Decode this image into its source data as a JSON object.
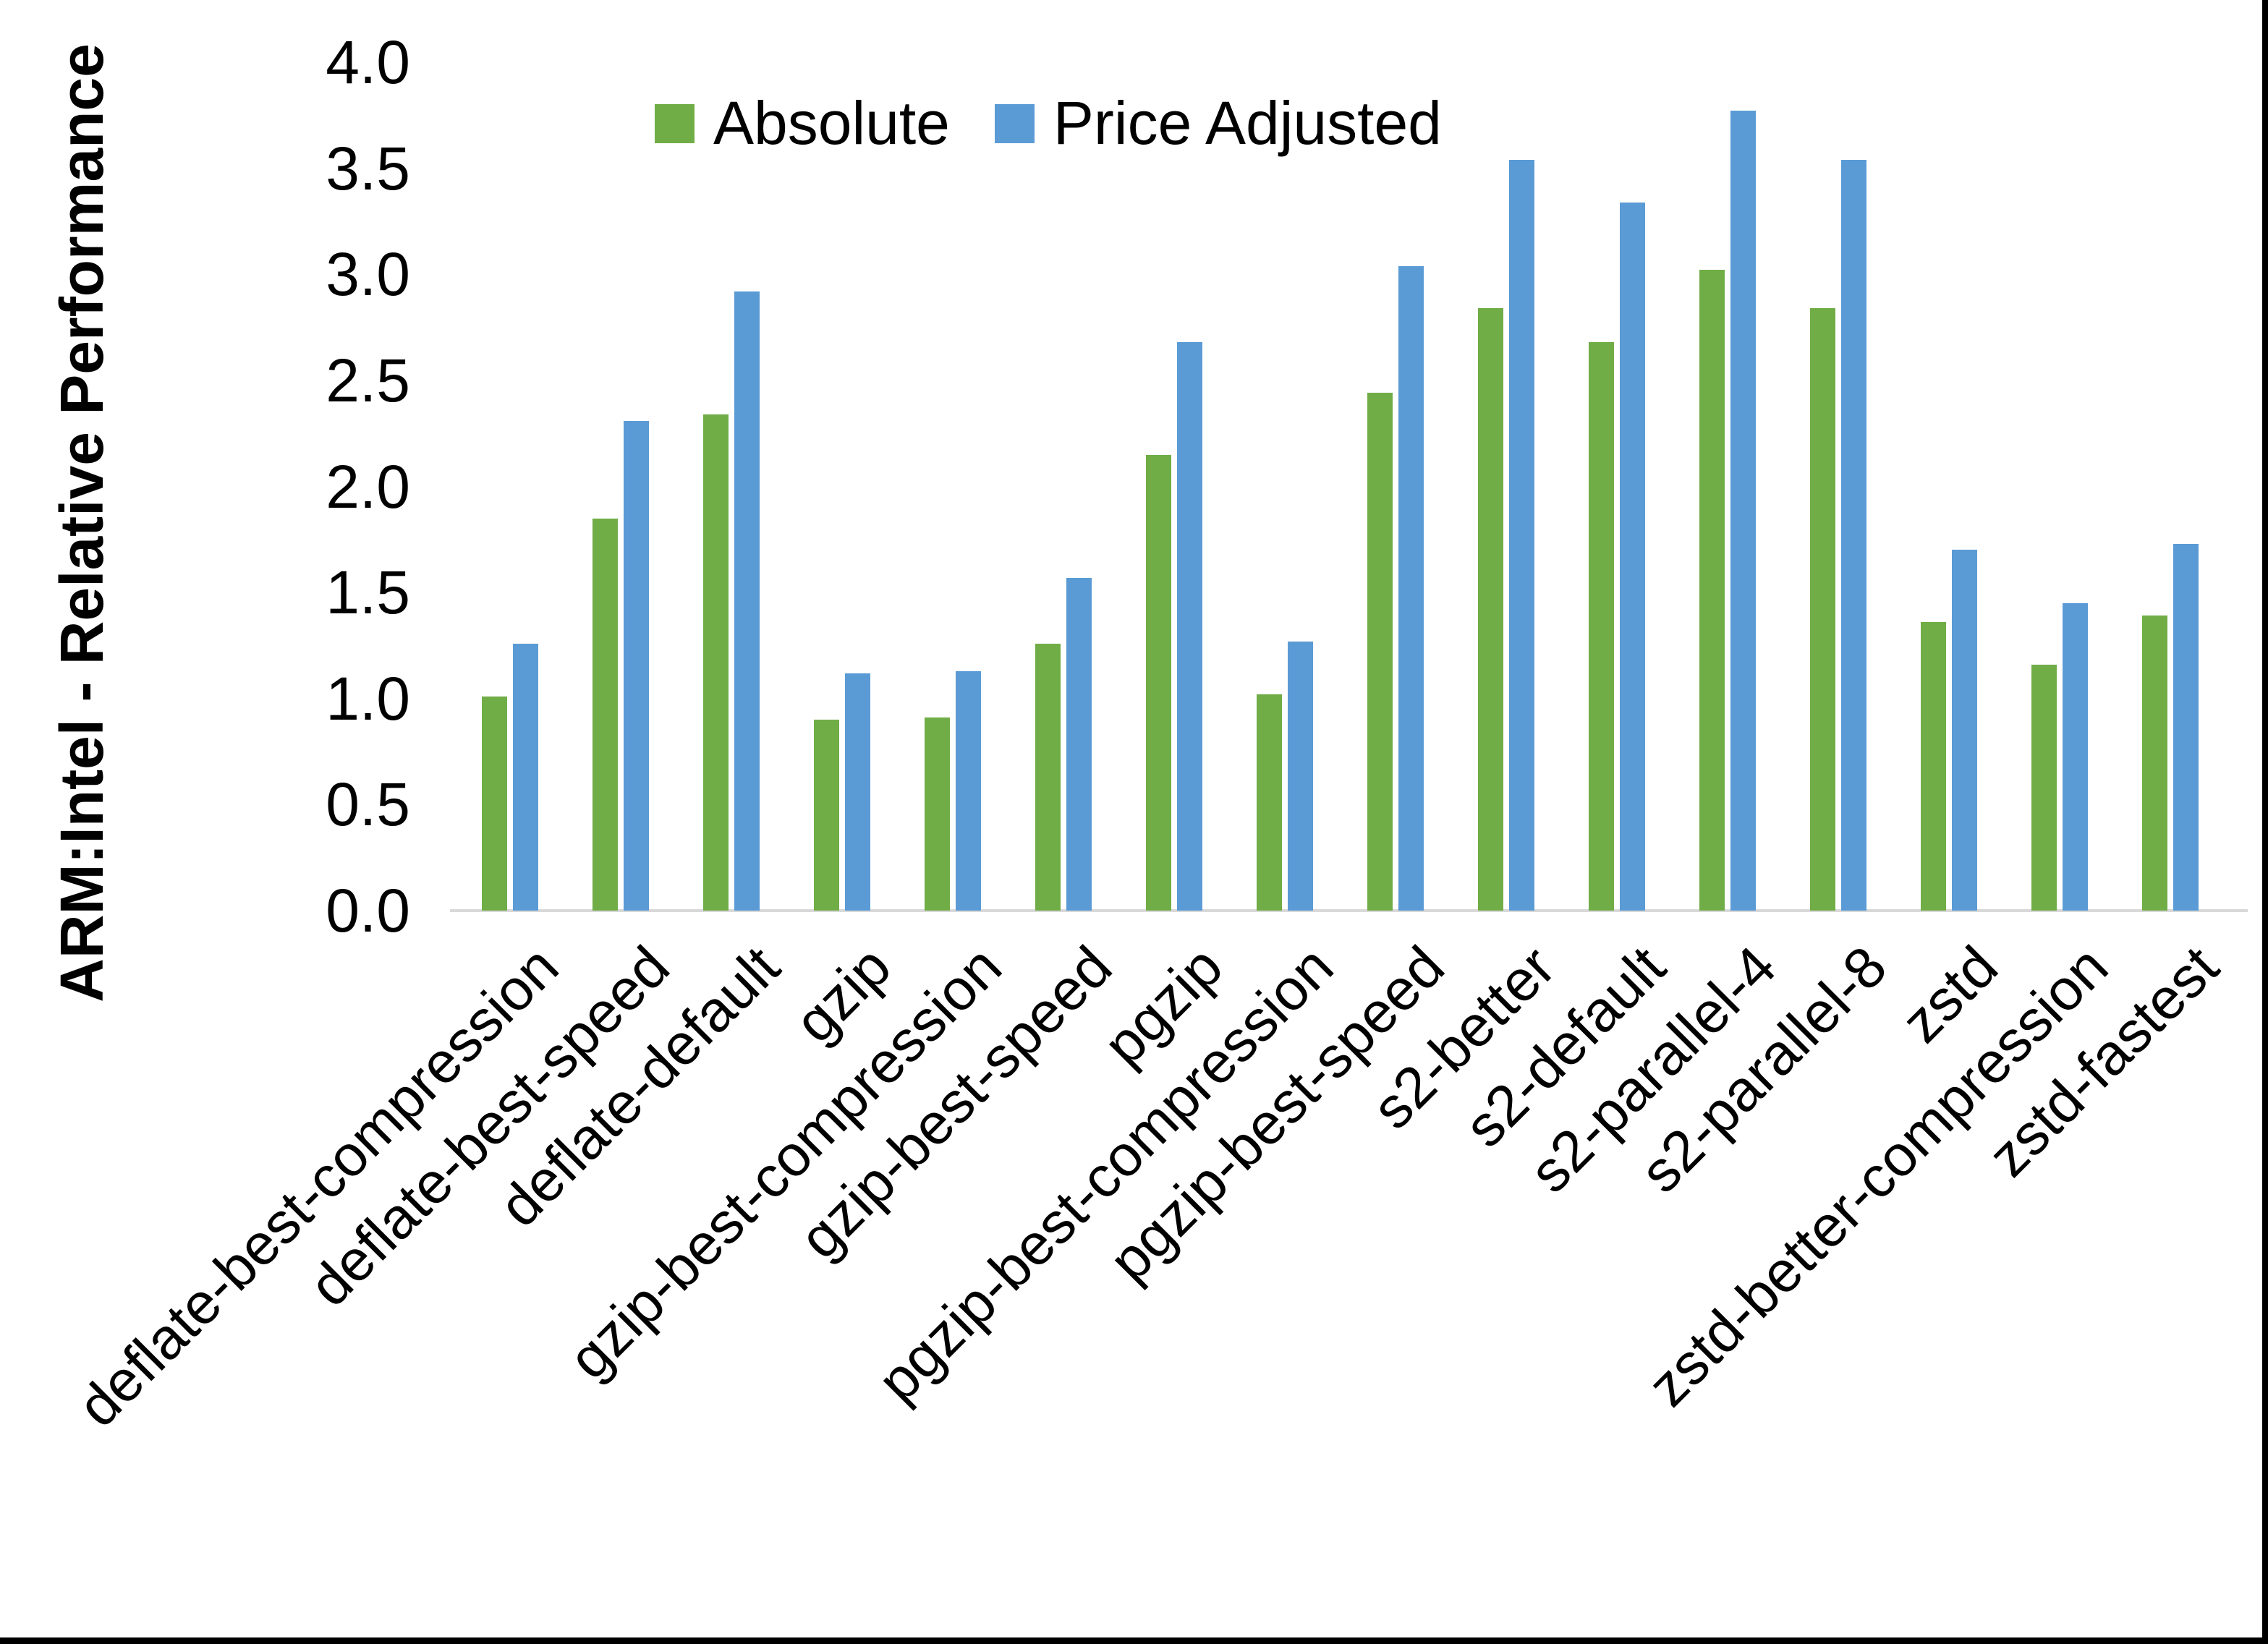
{
  "chart_data": {
    "type": "bar",
    "ylabel": "ARM:Intel - Relative Performance",
    "xlabel": "",
    "title": "",
    "ylim": [
      0.0,
      4.0
    ],
    "ytick_step": 0.5,
    "yticks": [
      "0.0",
      "0.5",
      "1.0",
      "1.5",
      "2.0",
      "2.5",
      "3.0",
      "3.5",
      "4.0"
    ],
    "grid": "off",
    "legend_position": "top",
    "categories": [
      "deflate-best-compression",
      "deflate-best-speed",
      "deflate-default",
      "gzip",
      "gzip-best-compression",
      "gzip-best-speed",
      "pgzip",
      "pgzip-best-compression",
      "pgzip-best-speed",
      "s2-better",
      "s2-default",
      "s2-parallel-4",
      "s2-parallel-8",
      "zstd",
      "zstd-better-compression",
      "zstd-fastest"
    ],
    "series": [
      {
        "name": "Absolute",
        "color": "#70ad47",
        "values": [
          1.01,
          1.85,
          2.34,
          0.9,
          0.91,
          1.26,
          2.15,
          1.02,
          2.44,
          2.84,
          2.68,
          3.02,
          2.84,
          1.36,
          1.16,
          1.39
        ]
      },
      {
        "name": "Price Adjusted",
        "color": "#5b9bd5",
        "values": [
          1.26,
          2.31,
          2.92,
          1.12,
          1.13,
          1.57,
          2.68,
          1.27,
          3.04,
          3.54,
          3.34,
          3.77,
          3.54,
          1.7,
          1.45,
          1.73
        ]
      }
    ],
    "axis_line_color": "#d9d9d9"
  }
}
